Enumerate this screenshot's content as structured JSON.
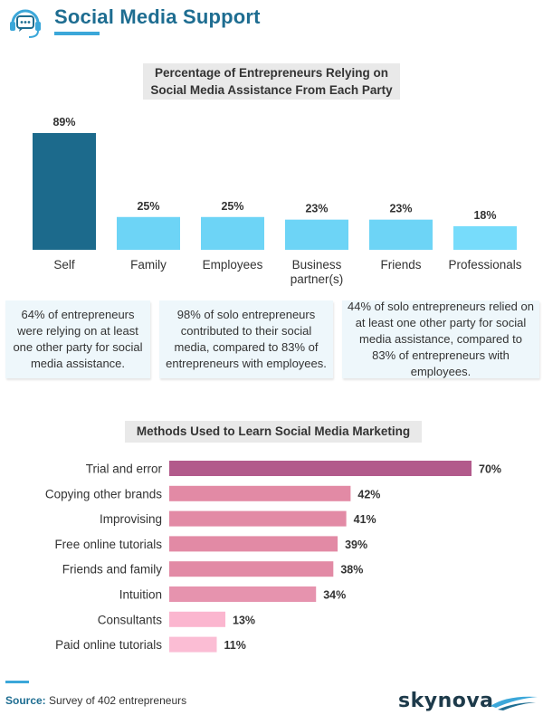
{
  "header": {
    "title": "Social Media Support",
    "icon": "headset-chat-icon",
    "accent_color": "#1e6d91"
  },
  "chart_data": [
    {
      "type": "bar",
      "title": "Percentage of Entrepreneurs Relying on Social Media Assistance From Each Party",
      "title_lines": [
        "Percentage of Entrepreneurs Relying on",
        "Social Media Assistance From Each Party"
      ],
      "categories": [
        "Self",
        "Family",
        "Employees",
        "Business partner(s)",
        "Friends",
        "Professionals"
      ],
      "category_lines": [
        [
          "Self"
        ],
        [
          "Family"
        ],
        [
          "Employees"
        ],
        [
          "Business",
          "partner(s)"
        ],
        [
          "Friends"
        ],
        [
          "Professionals"
        ]
      ],
      "values": [
        89,
        25,
        25,
        23,
        23,
        18
      ],
      "value_labels": [
        "89%",
        "25%",
        "25%",
        "23%",
        "23%",
        "18%"
      ],
      "ylim": [
        0,
        89
      ],
      "grid": false,
      "colors": [
        "#1c6a8c",
        "#6dd4f6",
        "#6dd4f6",
        "#6dd4f6",
        "#6dd4f6",
        "#77dcfb"
      ]
    },
    {
      "type": "bar",
      "orientation": "horizontal",
      "title": "Methods Used to Learn Social Media Marketing",
      "categories": [
        "Trial and error",
        "Copying other brands",
        "Improvising",
        "Free online tutorials",
        "Friends and family",
        "Intuition",
        "Consultants",
        "Paid online tutorials"
      ],
      "values": [
        70,
        42,
        41,
        39,
        38,
        34,
        13,
        11
      ],
      "value_labels": [
        "70%",
        "42%",
        "41%",
        "39%",
        "38%",
        "34%",
        "13%",
        "11%"
      ],
      "xlim": [
        0,
        70
      ],
      "grid": false,
      "colors": [
        "#b25a8b",
        "#e28aa5",
        "#e28aa5",
        "#e28aa5",
        "#e28aa5",
        "#e693ae",
        "#fbb6cf",
        "#fbbdd4"
      ]
    }
  ],
  "info_boxes": [
    "64% of entrepreneurs were relying on at least one other party for social media assistance.",
    "98% of solo entrepreneurs contributed to their social media, compared to 83% of entrepreneurs with employees.",
    "44% of solo entrepreneurs relied on at least one other party for social media assistance, compared to 83% of entrepreneurs with employees."
  ],
  "footer": {
    "source_label": "Source:",
    "source_text": "Survey of 402 entrepreneurs",
    "brand": "skynova"
  }
}
